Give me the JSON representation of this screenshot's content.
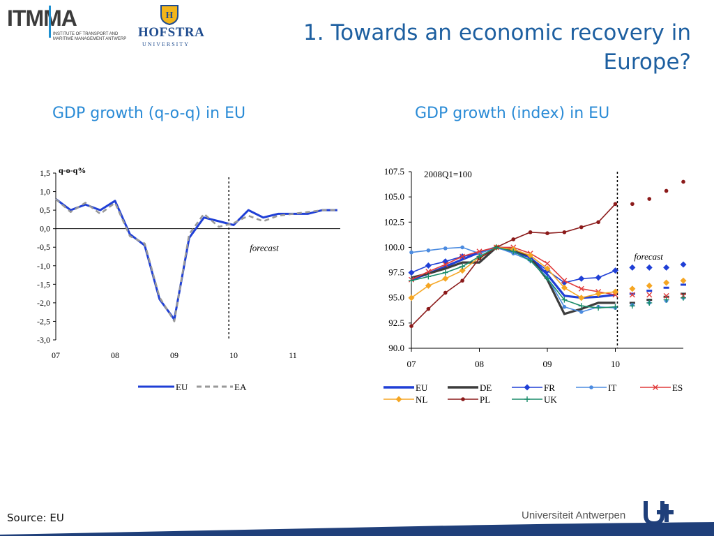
{
  "header": {
    "logo_itmma": "ITMMA",
    "logo_itmma_line1": "INSTITUTE OF TRANSPORT AND",
    "logo_itmma_line2": "MARITIME MANAGEMENT ANTWERP",
    "logo_hofstra": "HOFSTRA",
    "logo_hofstra_sub": "UNIVERSITY",
    "title": "1. Towards an economic recovery in Europe?"
  },
  "subtitles": {
    "left": "GDP growth (q-o-q) in EU",
    "right": "GDP growth (index) in EU"
  },
  "footer": {
    "source": "Source: EU",
    "university": "Universiteit Antwerpen"
  },
  "chart_data": [
    {
      "type": "line",
      "unit_label": "q-o-q%",
      "ylim": [
        -3.0,
        1.5
      ],
      "y_ticks": [
        "1,5",
        "1,0",
        "0,5",
        "0,0",
        "-0,5",
        "-1,0",
        "-1,5",
        "-2,0",
        "-2,5",
        "-3,0"
      ],
      "x_tick_labels": [
        "07",
        "08",
        "09",
        "10",
        "11"
      ],
      "forecast_label": "forecast",
      "forecast_start": 2009.92,
      "legend_position": "bottom",
      "series": [
        {
          "name": "EU",
          "color": "#1f3fd6",
          "style": "solid",
          "x": [
            2007.0,
            2007.25,
            2007.5,
            2007.75,
            2008.0,
            2008.25,
            2008.5,
            2008.75,
            2009.0,
            2009.25,
            2009.5,
            2009.75,
            2010.0,
            2010.25,
            2010.5,
            2010.75,
            2011.0,
            2011.25,
            2011.5,
            2011.75
          ],
          "values": [
            0.8,
            0.5,
            0.65,
            0.5,
            0.75,
            -0.15,
            -0.45,
            -1.9,
            -2.45,
            -0.25,
            0.3,
            0.2,
            0.1,
            0.5,
            0.3,
            0.4,
            0.4,
            0.4,
            0.5,
            0.5
          ]
        },
        {
          "name": "EA",
          "color": "#999999",
          "style": "dashed",
          "x": [
            2007.0,
            2007.25,
            2007.5,
            2007.75,
            2008.0,
            2008.25,
            2008.5,
            2008.75,
            2009.0,
            2009.25,
            2009.5,
            2009.75,
            2010.0,
            2010.25,
            2010.5,
            2010.75,
            2011.0,
            2011.25,
            2011.5,
            2011.75
          ],
          "values": [
            0.8,
            0.45,
            0.7,
            0.4,
            0.7,
            -0.2,
            -0.4,
            -1.85,
            -2.5,
            -0.15,
            0.4,
            0.05,
            0.15,
            0.35,
            0.2,
            0.35,
            0.4,
            0.45,
            0.5,
            0.5
          ]
        }
      ]
    },
    {
      "type": "line",
      "unit_label": "2008Q1=100",
      "ylim": [
        90.0,
        107.5
      ],
      "y_ticks": [
        "107.5",
        "105.0",
        "102.5",
        "100.0",
        "97.5",
        "95.0",
        "92.5",
        "90.0"
      ],
      "x_tick_labels": [
        "07",
        "08",
        "09",
        "10"
      ],
      "forecast_label": "forecast",
      "forecast_start": 2010.03,
      "legend_position": "bottom",
      "x": [
        2007.0,
        2007.25,
        2007.5,
        2007.75,
        2008.0,
        2008.25,
        2008.5,
        2008.75,
        2009.0,
        2009.25,
        2009.5,
        2009.75,
        2010.0,
        2010.25,
        2010.5,
        2010.75,
        2011.0
      ],
      "series": [
        {
          "name": "EU",
          "color": "#1f3fd6",
          "marker": "none",
          "values": [
            96.8,
            97.4,
            98.1,
            98.8,
            99.5,
            100.0,
            99.6,
            99.0,
            97.3,
            95.2,
            95.0,
            95.1,
            95.3,
            95.4,
            95.7,
            96.0,
            96.3
          ]
        },
        {
          "name": "DE",
          "color": "#3c3c3c",
          "marker": "none",
          "values": [
            97.0,
            97.4,
            97.9,
            98.5,
            98.5,
            100.0,
            99.8,
            99.0,
            96.8,
            93.4,
            93.9,
            94.5,
            94.5,
            94.5,
            94.8,
            95.1,
            95.4
          ]
        },
        {
          "name": "FR",
          "color": "#1f3fd6",
          "marker": "diamond",
          "values": [
            97.5,
            98.2,
            98.6,
            99.1,
            99.4,
            100.0,
            99.5,
            99.0,
            97.7,
            96.5,
            96.9,
            97.0,
            97.7,
            98.0,
            98.0,
            98.0,
            98.3
          ]
        },
        {
          "name": "IT",
          "color": "#4b8be0",
          "marker": "circle",
          "values": [
            99.5,
            99.7,
            99.9,
            100.0,
            99.4,
            100.0,
            99.4,
            98.7,
            97.0,
            94.1,
            93.6,
            94.1,
            94.0,
            94.3,
            94.5,
            94.7,
            95.0
          ]
        },
        {
          "name": "ES",
          "color": "#e03a3a",
          "marker": "x",
          "values": [
            96.8,
            97.6,
            98.3,
            99.1,
            99.6,
            100.0,
            100.0,
            99.4,
            98.4,
            96.7,
            95.9,
            95.6,
            95.3,
            95.3,
            95.3,
            95.2,
            95.2
          ]
        },
        {
          "name": "NL",
          "color": "#f5a623",
          "marker": "diamond",
          "values": [
            95.0,
            96.2,
            96.9,
            97.7,
            99.0,
            100.0,
            99.8,
            99.2,
            97.9,
            96.0,
            95.0,
            95.4,
            95.6,
            95.9,
            96.2,
            96.5,
            96.7
          ]
        },
        {
          "name": "PL",
          "color": "#8b1a1a",
          "marker": "circle",
          "values": [
            92.2,
            93.9,
            95.5,
            96.7,
            98.9,
            100.0,
            100.8,
            101.5,
            101.4,
            101.5,
            102.0,
            102.5,
            104.3,
            104.3,
            104.8,
            105.6,
            106.5
          ]
        },
        {
          "name": "UK",
          "color": "#1a8c6a",
          "marker": "plus",
          "values": [
            96.7,
            97.1,
            97.5,
            98.1,
            99.1,
            100.0,
            99.6,
            98.7,
            96.9,
            94.8,
            94.2,
            94.0,
            94.1,
            94.2,
            94.5,
            94.8,
            95.0
          ]
        }
      ]
    }
  ]
}
